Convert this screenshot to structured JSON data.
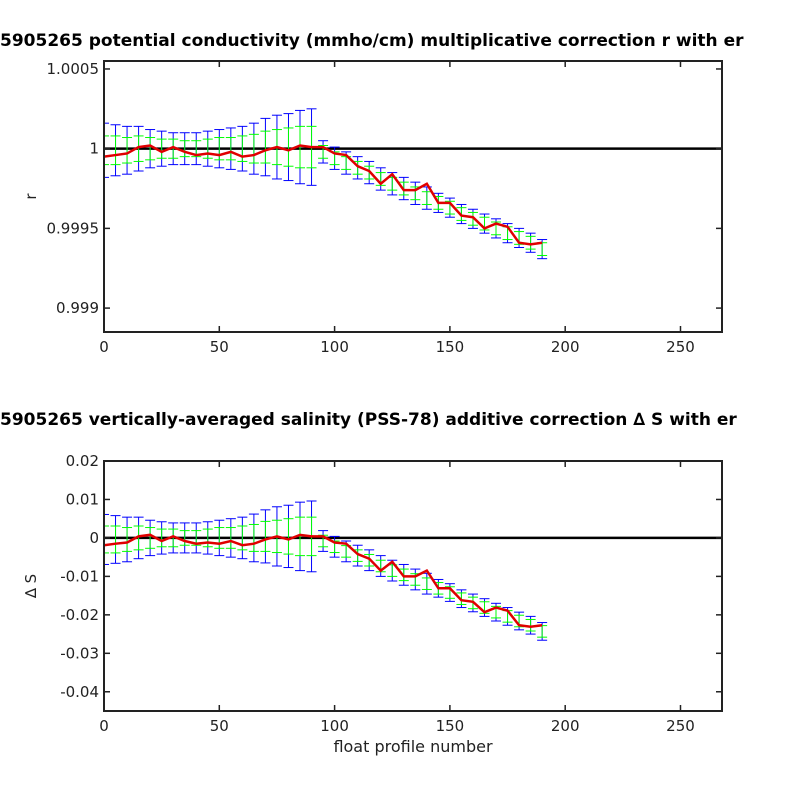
{
  "chart_data": [
    {
      "type": "errorbar",
      "title": "5905265 potential conductivity (mmho/cm) multiplicative correction r with er",
      "ylabel": "r",
      "x": [
        0,
        5,
        10,
        15,
        20,
        25,
        30,
        35,
        40,
        45,
        50,
        55,
        60,
        65,
        70,
        75,
        80,
        85,
        90,
        95,
        100,
        105,
        110,
        115,
        120,
        125,
        130,
        135,
        140,
        145,
        150,
        155,
        160,
        165,
        170,
        175,
        180,
        185,
        190
      ],
      "xlim": [
        0,
        268
      ],
      "xticks": [
        0,
        50,
        100,
        150,
        200,
        250
      ],
      "ylim": [
        0.99885,
        1.00055
      ],
      "yticks": [
        0.999,
        0.9995,
        1,
        1.0005
      ],
      "reference_line": {
        "value": 1,
        "color": "#000000"
      },
      "series": [
        {
          "color": "#0000ff",
          "values": [
            0.99999,
            0.99999,
            0.99999,
            1,
            1,
            1,
            1,
            1,
            1,
            1,
            1,
            1,
            1,
            1,
            1.00001,
            1.00001,
            1.00001,
            1.00001,
            1.00001,
            0.99998,
            0.99994,
            0.99991,
            0.99988,
            0.99985,
            0.99981,
            0.99978,
            0.99975,
            0.99972,
            0.99969,
            0.99966,
            0.99963,
            0.99959,
            0.99956,
            0.99953,
            0.9995,
            0.99947,
            0.99944,
            0.99941,
            0.99937
          ],
          "errors": [
            0.00017,
            0.00016,
            0.00015,
            0.00014,
            0.00012,
            0.00011,
            0.0001,
            0.0001,
            0.0001,
            0.00011,
            0.00012,
            0.00013,
            0.00014,
            0.00016,
            0.00018,
            0.0002,
            0.00021,
            0.00023,
            0.00024,
            7e-05,
            7e-05,
            7e-05,
            7e-05,
            7e-05,
            7e-05,
            7e-05,
            7e-05,
            7e-05,
            7e-05,
            6e-05,
            6e-05,
            6e-05,
            6e-05,
            6e-05,
            6e-05,
            6e-05,
            6e-05,
            6e-05,
            6e-05
          ]
        },
        {
          "color": "#00ff00",
          "values": [
            0.99999,
            0.99999,
            0.99999,
            1,
            1,
            1,
            1,
            1,
            1,
            1,
            1,
            1,
            1,
            1,
            1.00001,
            1.00001,
            1.00001,
            1.00001,
            1.00001,
            0.99998,
            0.99994,
            0.99991,
            0.99988,
            0.99985,
            0.99981,
            0.99978,
            0.99975,
            0.99972,
            0.99969,
            0.99966,
            0.99963,
            0.99959,
            0.99956,
            0.99953,
            0.9995,
            0.99947,
            0.99944,
            0.99941,
            0.99937
          ],
          "errors": [
            9e-05,
            9e-05,
            8e-05,
            8e-05,
            7e-05,
            6e-05,
            6e-05,
            5e-05,
            5e-05,
            6e-05,
            7e-05,
            7e-05,
            8e-05,
            9e-05,
            0.0001,
            0.00011,
            0.00012,
            0.00013,
            0.00013,
            4e-05,
            4e-05,
            4e-05,
            4e-05,
            4e-05,
            4e-05,
            4e-05,
            4e-05,
            4e-05,
            4e-05,
            4e-05,
            4e-05,
            4e-05,
            4e-05,
            4e-05,
            4e-05,
            4e-05,
            4e-05,
            4e-05,
            4e-05
          ]
        },
        {
          "color": "#e00000",
          "values": [
            0.99995,
            0.99996,
            0.99997,
            1.00001,
            1.00002,
            0.99998,
            1.00001,
            0.99998,
            0.99996,
            0.99997,
            0.99996,
            0.99998,
            0.99995,
            0.99996,
            0.99999,
            1.00001,
            0.99999,
            1.00002,
            1.00001,
            1.00001,
            0.99997,
            0.99996,
            0.99989,
            0.99986,
            0.99978,
            0.99984,
            0.99974,
            0.99974,
            0.99978,
            0.99966,
            0.99966,
            0.99958,
            0.99957,
            0.9995,
            0.99953,
            0.99951,
            0.99941,
            0.9994,
            0.99941
          ]
        }
      ]
    },
    {
      "type": "errorbar",
      "title": "5905265 vertically-averaged salinity (PSS-78) additive correction ∆ S with er",
      "ylabel": "∆ S",
      "xlabel": "float profile number",
      "x": [
        0,
        5,
        10,
        15,
        20,
        25,
        30,
        35,
        40,
        45,
        50,
        55,
        60,
        65,
        70,
        75,
        80,
        85,
        90,
        95,
        100,
        105,
        110,
        115,
        120,
        125,
        130,
        135,
        140,
        145,
        150,
        155,
        160,
        165,
        170,
        175,
        180,
        185,
        190
      ],
      "xlim": [
        0,
        268
      ],
      "xticks": [
        0,
        50,
        100,
        150,
        200,
        250
      ],
      "ylim": [
        -0.045,
        0.02
      ],
      "yticks": [
        -0.04,
        -0.03,
        -0.02,
        -0.01,
        0,
        0.01,
        0.02
      ],
      "reference_line": {
        "value": 0,
        "color": "#000000"
      },
      "series": [
        {
          "color": "#0000ff",
          "values": [
            -0.0004,
            -0.0004,
            -0.0004,
            0,
            0,
            0,
            0,
            0,
            0,
            0,
            0,
            0,
            0,
            0,
            0.0004,
            0.0004,
            0.0004,
            0.0004,
            0.0004,
            -0.0008,
            -0.0023,
            -0.0035,
            -0.0046,
            -0.0058,
            -0.0073,
            -0.0085,
            -0.0096,
            -0.0108,
            -0.0119,
            -0.0131,
            -0.0142,
            -0.0158,
            -0.0169,
            -0.0181,
            -0.0193,
            -0.0204,
            -0.0216,
            -0.0227,
            -0.0243
          ],
          "errors": [
            0.0065,
            0.0062,
            0.0058,
            0.0054,
            0.0046,
            0.0042,
            0.0039,
            0.0039,
            0.0039,
            0.0042,
            0.0046,
            0.005,
            0.0054,
            0.0062,
            0.0069,
            0.0077,
            0.0081,
            0.0089,
            0.0092,
            0.0027,
            0.0027,
            0.0027,
            0.0027,
            0.0027,
            0.0027,
            0.0027,
            0.0027,
            0.0027,
            0.0027,
            0.0023,
            0.0023,
            0.0023,
            0.0023,
            0.0023,
            0.0023,
            0.0023,
            0.0023,
            0.0023,
            0.0023
          ]
        },
        {
          "color": "#00ff00",
          "values": [
            -0.0004,
            -0.0004,
            -0.0004,
            0,
            0,
            0,
            0,
            0,
            0,
            0,
            0,
            0,
            0,
            0,
            0.0004,
            0.0004,
            0.0004,
            0.0004,
            0.0004,
            -0.0008,
            -0.0023,
            -0.0035,
            -0.0046,
            -0.0058,
            -0.0073,
            -0.0085,
            -0.0096,
            -0.0108,
            -0.0119,
            -0.0131,
            -0.0142,
            -0.0158,
            -0.0169,
            -0.0181,
            -0.0193,
            -0.0204,
            -0.0216,
            -0.0227,
            -0.0243
          ],
          "errors": [
            0.0035,
            0.0035,
            0.0031,
            0.0031,
            0.0027,
            0.0023,
            0.0023,
            0.0019,
            0.0019,
            0.0023,
            0.0027,
            0.0027,
            0.0031,
            0.0035,
            0.0039,
            0.0042,
            0.0046,
            0.005,
            0.005,
            0.0015,
            0.0015,
            0.0015,
            0.0015,
            0.0015,
            0.0015,
            0.0015,
            0.0015,
            0.0015,
            0.0015,
            0.0015,
            0.0015,
            0.0015,
            0.0015,
            0.0015,
            0.0015,
            0.0015,
            0.0015,
            0.0015,
            0.0015
          ]
        },
        {
          "color": "#e00000",
          "values": [
            -0.0019,
            -0.0015,
            -0.0012,
            0.0004,
            0.0008,
            -0.0008,
            0.0004,
            -0.0008,
            -0.0015,
            -0.0012,
            -0.0015,
            -0.0008,
            -0.0019,
            -0.0015,
            -0.0004,
            0.0004,
            -0.0004,
            0.0008,
            0.0004,
            0.0004,
            -0.0012,
            -0.0015,
            -0.0042,
            -0.0054,
            -0.0085,
            -0.0062,
            -0.01,
            -0.01,
            -0.0085,
            -0.0131,
            -0.0131,
            -0.0162,
            -0.0166,
            -0.0193,
            -0.0181,
            -0.0189,
            -0.0227,
            -0.0231,
            -0.0227
          ]
        }
      ]
    }
  ]
}
